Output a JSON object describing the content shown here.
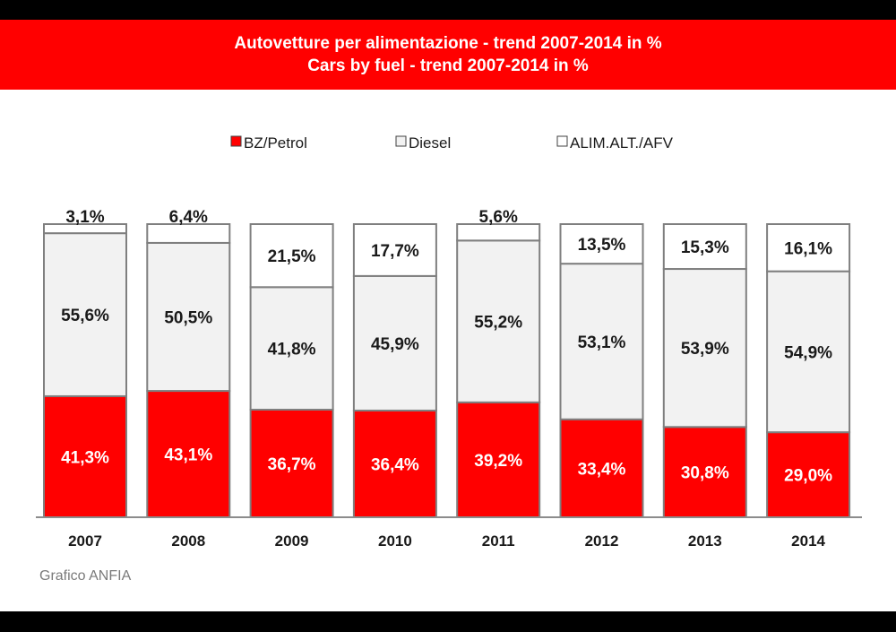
{
  "title": "Autovetture per alimentazione - trend 2007-2014 in %",
  "subtitle": "Cars by fuel - trend 2007-2014 in %",
  "source": "Grafico ANFIA",
  "colors": {
    "banner": "#ff0000",
    "petrol": "#ff0000",
    "diesel": "#f2f2f2",
    "afv": "#ffffff",
    "border": "#7f7f7f"
  },
  "chart_data": {
    "type": "bar",
    "stacked": true,
    "categories": [
      "2007",
      "2008",
      "2009",
      "2010",
      "2011",
      "2012",
      "2013",
      "2014"
    ],
    "series": [
      {
        "name": "BZ/Petrol",
        "color": "#ff0000",
        "values": [
          41.3,
          43.1,
          36.7,
          36.4,
          39.2,
          33.4,
          30.8,
          29.0
        ],
        "labels": [
          "41,3%",
          "43,1%",
          "36,7%",
          "36,4%",
          "39,2%",
          "33,4%",
          "30,8%",
          "29,0%"
        ]
      },
      {
        "name": "Diesel",
        "color": "#f2f2f2",
        "values": [
          55.6,
          50.5,
          41.8,
          45.9,
          55.2,
          53.1,
          53.9,
          54.9
        ],
        "labels": [
          "55,6%",
          "50,5%",
          "41,8%",
          "45,9%",
          "55,2%",
          "53,1%",
          "53,9%",
          "54,9%"
        ]
      },
      {
        "name": "ALIM.ALT./AFV",
        "color": "#ffffff",
        "values": [
          3.1,
          6.4,
          21.5,
          17.7,
          5.6,
          13.5,
          15.3,
          16.1
        ],
        "labels": [
          "3,1%",
          "6,4%",
          "21,5%",
          "17,7%",
          "5,6%",
          "13,5%",
          "15,3%",
          "16,1%"
        ]
      }
    ],
    "ylim": [
      0,
      100
    ],
    "grid": false,
    "legend_position": "top"
  }
}
